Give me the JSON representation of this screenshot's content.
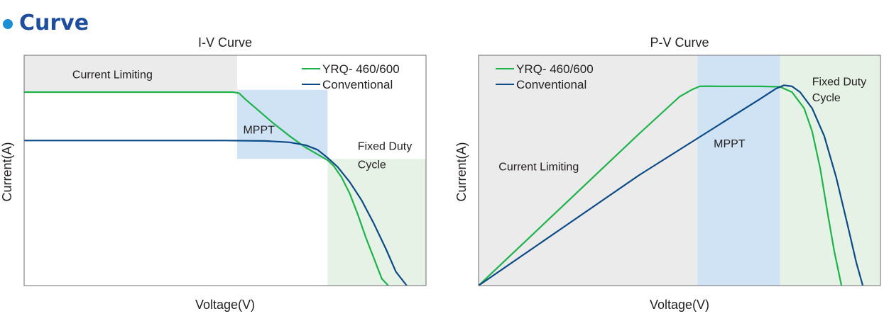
{
  "section_heading": "Curve",
  "colors": {
    "heading": "#1f4e9e",
    "bullet": "#1a8fd6",
    "yrq_series": "#1db34a",
    "conventional_series": "#0b4a86",
    "zone_current_limiting": "#ebebeb",
    "zone_mppt": "#cfe3f5",
    "zone_fixed_duty": "#e6f2e6"
  },
  "chart_data": [
    {
      "type": "line",
      "title": "I-V Curve",
      "xlabel": "Voltage(V)",
      "ylabel": "Current(A)",
      "xlim": [
        0,
        100
      ],
      "ylim": [
        0,
        100
      ],
      "grid": false,
      "legend_position": "top-right",
      "zones": [
        {
          "name": "Current Limiting",
          "x0": 0,
          "x1": 53,
          "y0": 84,
          "y1": 100,
          "color": "#ebebeb"
        },
        {
          "name": "MPPT",
          "x0": 53,
          "x1": 75.5,
          "y0": 55,
          "y1": 85,
          "color": "#cfe3f5"
        },
        {
          "name": "Fixed Duty Cycle",
          "x0": 75.5,
          "x1": 100,
          "y0": 0,
          "y1": 55,
          "color": "#e6f2e6"
        }
      ],
      "annotations": [
        {
          "text": "Current Limiting",
          "x": 12,
          "y": 90
        },
        {
          "text": "MPPT",
          "x": 54.5,
          "y": 66
        },
        {
          "text": "Fixed Duty",
          "x": 83,
          "y": 59
        },
        {
          "text": "Cycle",
          "x": 83,
          "y": 51
        }
      ],
      "series": [
        {
          "name": "YRQ- 460/600",
          "color": "#1db34a",
          "x": [
            0,
            52,
            53.5,
            55,
            58,
            62,
            66,
            70,
            73,
            75.5,
            77,
            79,
            81,
            83,
            85,
            87,
            89,
            90.6
          ],
          "y": [
            84,
            84,
            83.5,
            81,
            76.5,
            70.5,
            65,
            60,
            57,
            54.5,
            52,
            47,
            40,
            31,
            21,
            12,
            3,
            0
          ]
        },
        {
          "name": "Conventional",
          "color": "#0b4a86",
          "x": [
            0,
            50,
            60,
            66,
            70,
            73,
            75.5,
            78,
            81,
            84,
            87,
            90,
            92.5,
            95.2
          ],
          "y": [
            63,
            63,
            62.8,
            62.2,
            61,
            59,
            55.5,
            51.5,
            45,
            37,
            27,
            16,
            6,
            0
          ]
        }
      ]
    },
    {
      "type": "line",
      "title": "P-V Curve",
      "xlabel": "Voltage(V)",
      "ylabel": "Current(A)",
      "xlim": [
        0,
        100
      ],
      "ylim": [
        0,
        100
      ],
      "grid": false,
      "legend_position": "top-left",
      "zones": [
        {
          "name": "Current Limiting",
          "x0": 0,
          "x1": 54.5,
          "y0": 0,
          "y1": 100,
          "color": "#ebebeb"
        },
        {
          "name": "MPPT",
          "x0": 54.5,
          "x1": 75,
          "y0": 0,
          "y1": 100,
          "color": "#cfe3f5"
        },
        {
          "name": "Fixed Duty Cycle",
          "x0": 75,
          "x1": 100,
          "y0": 0,
          "y1": 100,
          "color": "#e6f2e6"
        }
      ],
      "annotations": [
        {
          "text": "Current Limiting",
          "x": 5,
          "y": 50
        },
        {
          "text": "MPPT",
          "x": 58.5,
          "y": 60
        },
        {
          "text": "Fixed Duty",
          "x": 83,
          "y": 87
        },
        {
          "text": "Cycle",
          "x": 83,
          "y": 80
        }
      ],
      "series": [
        {
          "name": "YRQ- 460/600",
          "color": "#1db34a",
          "x": [
            0,
            10,
            20,
            30,
            40,
            50,
            53,
            55,
            57,
            60,
            70,
            75,
            78,
            81,
            83,
            85,
            87,
            88.5,
            90.3
          ],
          "y": [
            0,
            16.5,
            33,
            49.5,
            66,
            82,
            85,
            86.5,
            86.6,
            86.5,
            86.5,
            86.3,
            84,
            77,
            67,
            51,
            30,
            15,
            0
          ]
        },
        {
          "name": "Conventional",
          "color": "#0b4a86",
          "x": [
            0,
            20,
            40,
            60,
            70,
            74,
            76,
            78,
            80,
            83,
            86,
            89,
            92,
            94,
            95.6
          ],
          "y": [
            0,
            24,
            48,
            70,
            81,
            85.5,
            87,
            86.5,
            84,
            77,
            65,
            47,
            25,
            10,
            0
          ]
        }
      ]
    }
  ]
}
